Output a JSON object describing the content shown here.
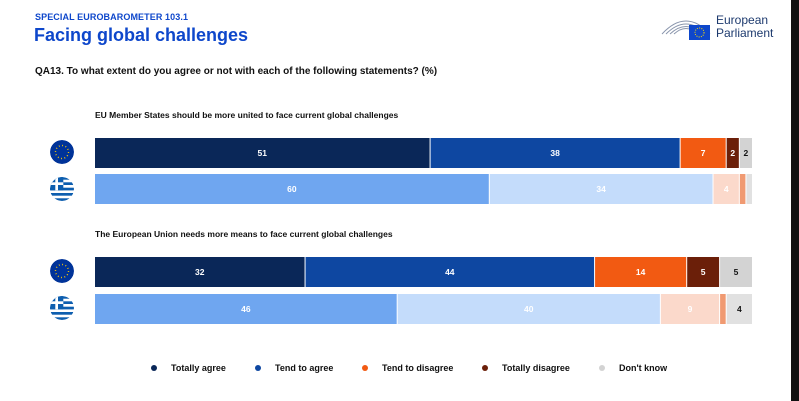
{
  "header": {
    "supertitle": "SPECIAL EUROBAROMETER 103.1",
    "title": "Facing global challenges",
    "question": "QA13. To what extent do you agree or not with each of the following statements? (%)"
  },
  "logo": {
    "line1": "European",
    "line2": "Parliament"
  },
  "colors": {
    "eu": [
      "#0a2758",
      "#0e47a1",
      "#f25a12",
      "#6b1f09",
      "#d3d3d3"
    ],
    "gr": [
      "#6fa6f0",
      "#c4dcfb",
      "#fbd9cb",
      "#f09a72",
      "#e1e1e1"
    ]
  },
  "chart_data": {
    "type": "bar",
    "orientation": "horizontal-stacked",
    "title": "Facing global challenges",
    "categories_legend": [
      "Totally agree",
      "Tend to agree",
      "Tend to disagree",
      "Totally disagree",
      "Don't know"
    ],
    "groups": [
      {
        "statement": "EU Member States should be more united to face current global challenges",
        "rows": [
          {
            "flag": "EU",
            "values": [
              51,
              38,
              7,
              2,
              2
            ],
            "labels": [
              "51",
              "38",
              "7",
              "2",
              "2"
            ]
          },
          {
            "flag": "Greece",
            "values": [
              60,
              34,
              4,
              1,
              1
            ],
            "labels": [
              "60",
              "34",
              "4",
              "",
              ""
            ]
          }
        ]
      },
      {
        "statement": "The European Union needs more means to face current global challenges",
        "rows": [
          {
            "flag": "EU",
            "values": [
              32,
              44,
              14,
              5,
              5
            ],
            "labels": [
              "32",
              "44",
              "14",
              "5",
              "5"
            ]
          },
          {
            "flag": "Greece",
            "values": [
              46,
              40,
              9,
              1,
              4
            ],
            "labels": [
              "46",
              "40",
              "9",
              "",
              "4"
            ]
          }
        ]
      }
    ]
  }
}
